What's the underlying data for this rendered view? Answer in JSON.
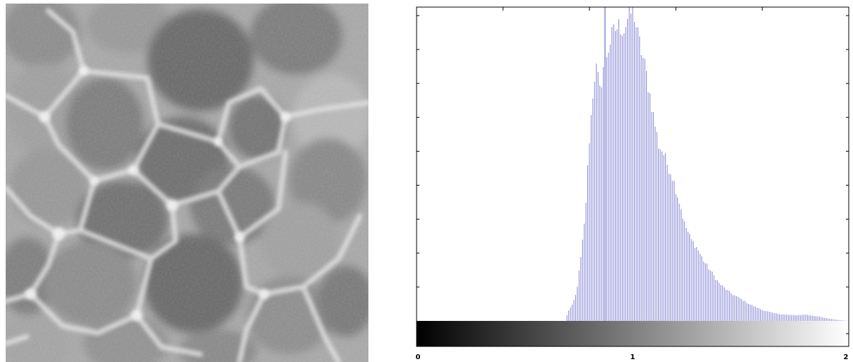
{
  "image_panel": {
    "icon": "cell-micrograph-image"
  },
  "chart_data": {
    "type": "bar",
    "title": "",
    "xlabel": "",
    "ylabel": "",
    "xlim": [
      0,
      2
    ],
    "ylim": [
      0,
      1.0
    ],
    "grid": false,
    "legend": "none",
    "colorbar": {
      "type": "grayscale",
      "range": [
        0,
        2
      ]
    },
    "x_tick_labels": [
      "0",
      "1",
      "2"
    ],
    "x_tick_values": [
      0,
      1,
      2
    ],
    "bin_width": 0.008,
    "bar_color": "#8f8fd8",
    "spike": {
      "x": 0.872,
      "value": 1.0
    },
    "profile": [
      [
        0.69,
        0.0
      ],
      [
        0.7,
        0.03
      ],
      [
        0.72,
        0.05
      ],
      [
        0.74,
        0.09
      ],
      [
        0.76,
        0.2
      ],
      [
        0.78,
        0.33
      ],
      [
        0.79,
        0.46
      ],
      [
        0.8,
        0.58
      ],
      [
        0.81,
        0.67
      ],
      [
        0.82,
        0.76
      ],
      [
        0.83,
        0.81
      ],
      [
        0.84,
        0.77
      ],
      [
        0.85,
        0.72
      ],
      [
        0.86,
        0.8
      ],
      [
        0.88,
        0.85
      ],
      [
        0.9,
        0.9
      ],
      [
        0.92,
        0.93
      ],
      [
        0.94,
        0.94
      ],
      [
        0.96,
        0.93
      ],
      [
        0.98,
        0.97
      ],
      [
        1.0,
        0.99
      ],
      [
        1.01,
        0.97
      ],
      [
        1.02,
        0.92
      ],
      [
        1.04,
        0.86
      ],
      [
        1.06,
        0.8
      ],
      [
        1.08,
        0.72
      ],
      [
        1.1,
        0.64
      ],
      [
        1.12,
        0.56
      ],
      [
        1.14,
        0.54
      ],
      [
        1.16,
        0.5
      ],
      [
        1.18,
        0.47
      ],
      [
        1.2,
        0.42
      ],
      [
        1.22,
        0.37
      ],
      [
        1.24,
        0.31
      ],
      [
        1.27,
        0.26
      ],
      [
        1.3,
        0.23
      ],
      [
        1.33,
        0.19
      ],
      [
        1.36,
        0.16
      ],
      [
        1.4,
        0.12
      ],
      [
        1.45,
        0.09
      ],
      [
        1.5,
        0.07
      ],
      [
        1.55,
        0.05
      ],
      [
        1.6,
        0.035
      ],
      [
        1.65,
        0.025
      ],
      [
        1.7,
        0.02
      ],
      [
        1.75,
        0.018
      ],
      [
        1.8,
        0.02
      ],
      [
        1.85,
        0.015
      ],
      [
        1.9,
        0.008
      ],
      [
        1.95,
        0.003
      ],
      [
        2.0,
        0.0
      ]
    ]
  }
}
